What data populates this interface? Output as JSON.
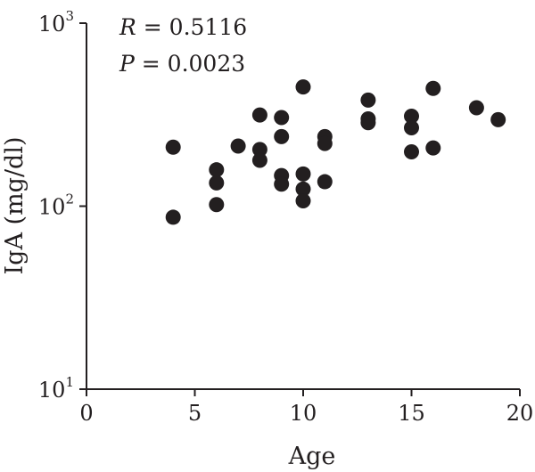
{
  "chart_data": {
    "type": "scatter",
    "title": "",
    "xlabel": "Age",
    "ylabel": "IgA (mg/dl)",
    "xlim": [
      0,
      20
    ],
    "ylim": [
      10,
      1000
    ],
    "y_scale": "log",
    "grid": false,
    "legend": "none",
    "marker_color": "#231f20",
    "x_ticks": [
      {
        "value": 0,
        "label": "0"
      },
      {
        "value": 5,
        "label": "5"
      },
      {
        "value": 10,
        "label": "10"
      },
      {
        "value": 15,
        "label": "15"
      },
      {
        "value": 20,
        "label": "20"
      }
    ],
    "y_ticks": [
      {
        "value": 10,
        "base": "10",
        "exp": "1"
      },
      {
        "value": 100,
        "base": "10",
        "exp": "2"
      },
      {
        "value": 1000,
        "base": "10",
        "exp": "3"
      }
    ],
    "annotations": {
      "r_var": "R",
      "r_rest": " = 0.5116",
      "p_var": "P",
      "p_rest": " = 0.0023"
    },
    "points": [
      {
        "x": 4,
        "y": 210
      },
      {
        "x": 4,
        "y": 87
      },
      {
        "x": 6,
        "y": 158
      },
      {
        "x": 6,
        "y": 134
      },
      {
        "x": 6,
        "y": 102
      },
      {
        "x": 7,
        "y": 213
      },
      {
        "x": 8,
        "y": 315
      },
      {
        "x": 8,
        "y": 204
      },
      {
        "x": 8,
        "y": 178
      },
      {
        "x": 9,
        "y": 305
      },
      {
        "x": 9,
        "y": 240
      },
      {
        "x": 9,
        "y": 147
      },
      {
        "x": 9,
        "y": 132
      },
      {
        "x": 10,
        "y": 448
      },
      {
        "x": 10,
        "y": 150
      },
      {
        "x": 10,
        "y": 124
      },
      {
        "x": 10,
        "y": 107
      },
      {
        "x": 11,
        "y": 240
      },
      {
        "x": 11,
        "y": 220
      },
      {
        "x": 11,
        "y": 136
      },
      {
        "x": 13,
        "y": 380
      },
      {
        "x": 13,
        "y": 300
      },
      {
        "x": 13,
        "y": 286
      },
      {
        "x": 15,
        "y": 310
      },
      {
        "x": 15,
        "y": 268
      },
      {
        "x": 15,
        "y": 198
      },
      {
        "x": 16,
        "y": 440
      },
      {
        "x": 16,
        "y": 208
      },
      {
        "x": 18,
        "y": 345
      },
      {
        "x": 19,
        "y": 297
      }
    ]
  }
}
